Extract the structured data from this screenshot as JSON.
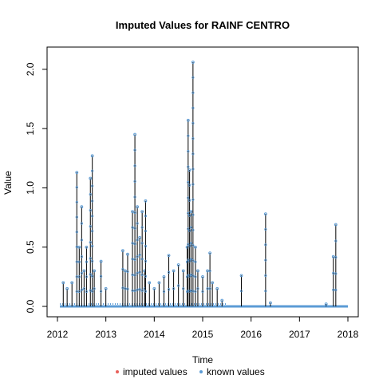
{
  "chart_data": {
    "type": "line",
    "title": "Imputed Values for  RAINF CENTRO",
    "xlabel": "Time",
    "ylabel": "Value",
    "xlim": [
      2012,
      2018
    ],
    "ylim": [
      0,
      2.1
    ],
    "x_ticks": [
      2012,
      2013,
      2014,
      2015,
      2016,
      2017,
      2018
    ],
    "x_tick_labels": [
      "2012",
      "2013",
      "2014",
      "2015",
      "2016",
      "2017",
      "2018"
    ],
    "y_ticks": [
      0,
      0.5,
      1.0,
      1.5,
      2.0
    ],
    "y_tick_labels": [
      "0.0",
      "0.5",
      "1.0",
      "1.5",
      "2.0"
    ],
    "grid": false,
    "legend_position": "bottom",
    "legend": [
      {
        "label": "imputed values",
        "color": "#e8605a"
      },
      {
        "label": "known values",
        "color": "#5b9bd5"
      }
    ],
    "series": [
      {
        "name": "known values",
        "color": "#5b9bd5",
        "line_color": "#000000",
        "start": 2012.05,
        "end": 2018.0,
        "baseline": 0,
        "peaks": [
          [
            2012.12,
            0.2
          ],
          [
            2012.2,
            0.15
          ],
          [
            2012.3,
            0.2
          ],
          [
            2012.4,
            1.13
          ],
          [
            2012.45,
            0.5
          ],
          [
            2012.5,
            0.84
          ],
          [
            2012.55,
            0.3
          ],
          [
            2012.6,
            0.5
          ],
          [
            2012.68,
            1.08
          ],
          [
            2012.72,
            1.27
          ],
          [
            2012.76,
            0.3
          ],
          [
            2012.9,
            0.38
          ],
          [
            2013.0,
            0.15
          ],
          [
            2013.35,
            0.47
          ],
          [
            2013.4,
            0.3
          ],
          [
            2013.45,
            0.44
          ],
          [
            2013.55,
            0.8
          ],
          [
            2013.6,
            1.45
          ],
          [
            2013.65,
            0.84
          ],
          [
            2013.7,
            0.58
          ],
          [
            2013.75,
            0.8
          ],
          [
            2013.8,
            0.3
          ],
          [
            2013.82,
            0.89
          ],
          [
            2013.9,
            0.2
          ],
          [
            2014.0,
            0.15
          ],
          [
            2014.1,
            0.2
          ],
          [
            2014.2,
            0.25
          ],
          [
            2014.3,
            0.43
          ],
          [
            2014.4,
            0.3
          ],
          [
            2014.5,
            0.35
          ],
          [
            2014.6,
            0.3
          ],
          [
            2014.68,
            0.5
          ],
          [
            2014.7,
            1.57
          ],
          [
            2014.73,
            1.15
          ],
          [
            2014.76,
            0.8
          ],
          [
            2014.8,
            2.06
          ],
          [
            2014.85,
            0.5
          ],
          [
            2014.9,
            0.3
          ],
          [
            2015.0,
            0.25
          ],
          [
            2015.1,
            0.3
          ],
          [
            2015.15,
            0.45
          ],
          [
            2015.2,
            0.2
          ],
          [
            2015.3,
            0.15
          ],
          [
            2015.4,
            0.05
          ],
          [
            2015.8,
            0.26
          ],
          [
            2016.3,
            0.78
          ],
          [
            2016.4,
            0.03
          ],
          [
            2017.55,
            0.02
          ],
          [
            2017.7,
            0.42
          ],
          [
            2017.75,
            0.69
          ]
        ]
      },
      {
        "name": "imputed values",
        "color": "#e8605a",
        "points": []
      }
    ]
  }
}
